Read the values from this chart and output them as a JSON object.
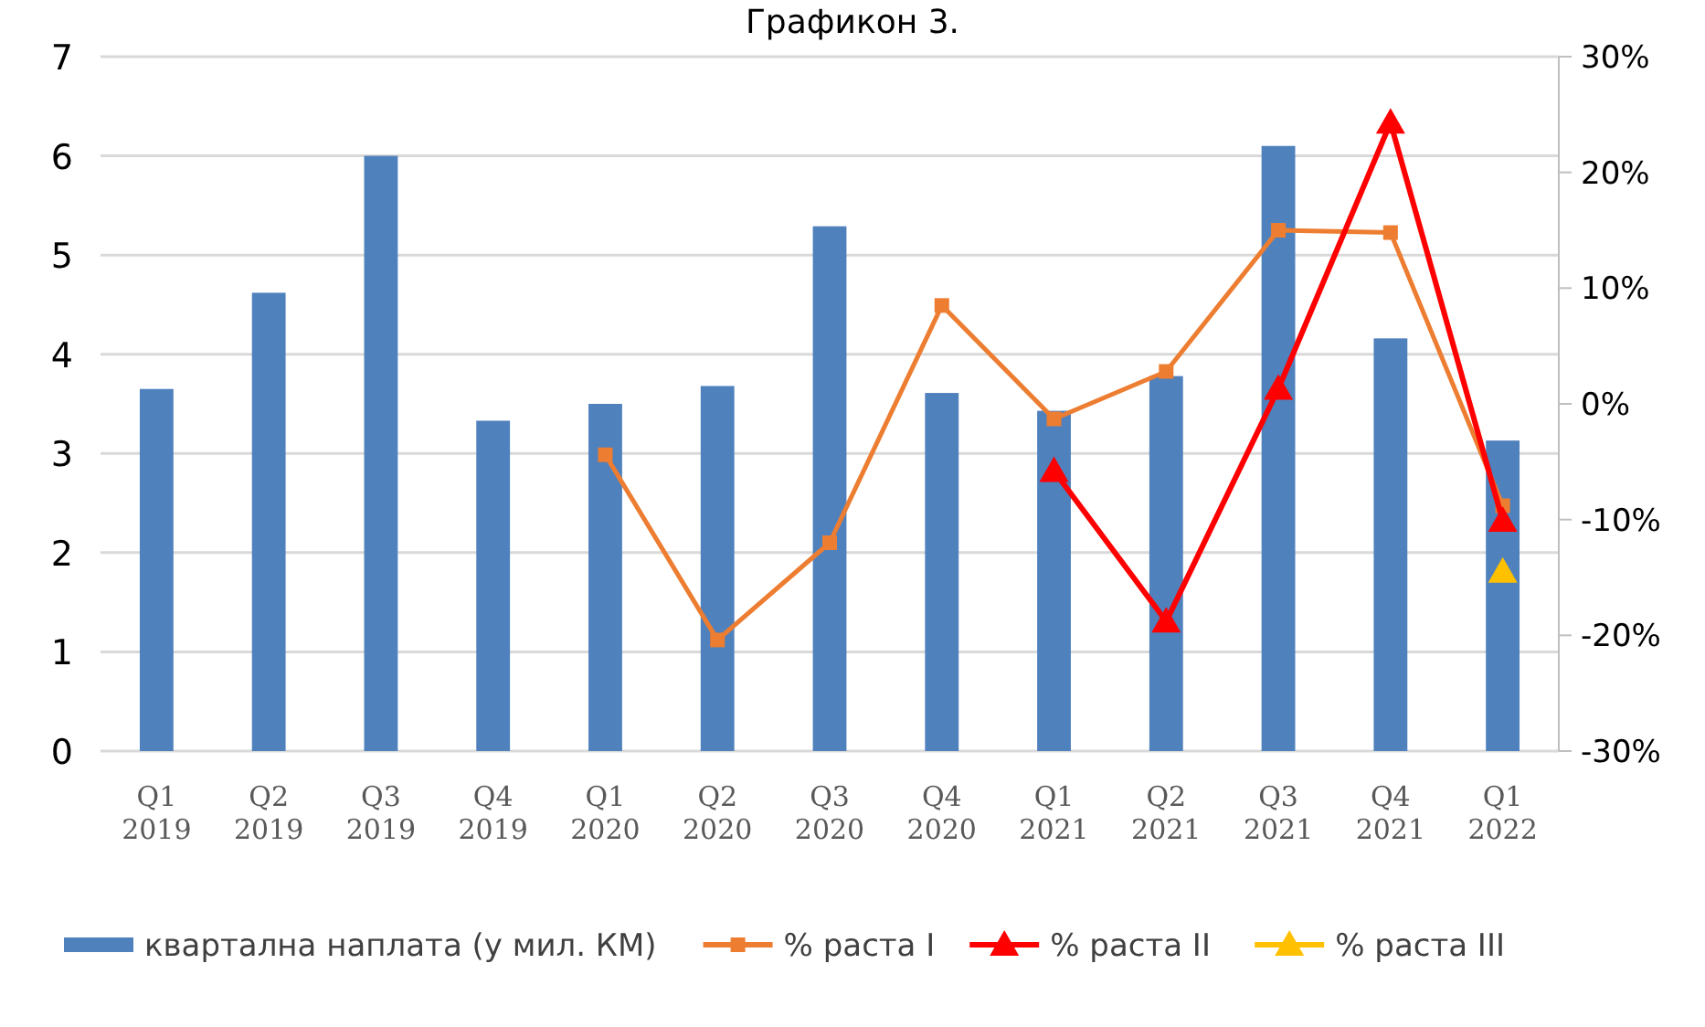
{
  "chart_data": {
    "type": "bar",
    "title": "Графикон 3.",
    "categories": [
      "Q1\n2019",
      "Q2\n2019",
      "Q3\n2019",
      "Q4\n2019",
      "Q1\n2020",
      "Q2\n2020",
      "Q3\n2020",
      "Q4\n2020",
      "Q1\n2021",
      "Q2\n2021",
      "Q3\n2021",
      "Q4\n2021",
      "Q1\n2022"
    ],
    "series": [
      {
        "name": "квартална наплата (у мил. КМ)",
        "color": "#4f81bd",
        "values": [
          3.65,
          4.62,
          6.0,
          3.33,
          3.5,
          3.68,
          5.29,
          3.61,
          3.43,
          3.78,
          6.1,
          4.16,
          3.13
        ]
      },
      {
        "name": "% раста I",
        "type": "line",
        "axis": "y2",
        "color": "#ed7d31",
        "marker": "square",
        "values": [
          null,
          null,
          null,
          null,
          -4.4,
          -20.4,
          -12,
          8.5,
          -1.3,
          2.8,
          15,
          14.8,
          -8.8
        ]
      },
      {
        "name": "% раста II",
        "type": "line",
        "axis": "y2",
        "color": "#ff0000",
        "marker": "triangle",
        "values": [
          null,
          null,
          null,
          null,
          null,
          null,
          null,
          null,
          -5.8,
          -18.8,
          1.3,
          24.3,
          -10.1
        ]
      },
      {
        "name": "% раста III",
        "type": "line",
        "axis": "y2",
        "color": "#ffc000",
        "marker": "triangle",
        "values": [
          null,
          null,
          null,
          null,
          null,
          null,
          null,
          null,
          null,
          null,
          null,
          null,
          -14.5
        ]
      }
    ],
    "ylim": [
      0,
      7
    ],
    "yticks": [
      0,
      1,
      2,
      3,
      4,
      5,
      6,
      7
    ],
    "y2lim": [
      -30,
      30
    ],
    "y2ticks": [
      {
        "value": -30,
        "label": "-30%"
      },
      {
        "value": -20,
        "label": "-20%"
      },
      {
        "value": -10,
        "label": "-10%"
      },
      {
        "value": 0,
        "label": "0%"
      },
      {
        "value": 10,
        "label": "10%"
      },
      {
        "value": 20,
        "label": "20%"
      },
      {
        "value": 30,
        "label": "30%"
      }
    ],
    "grid": "y",
    "legend": "bottom"
  }
}
